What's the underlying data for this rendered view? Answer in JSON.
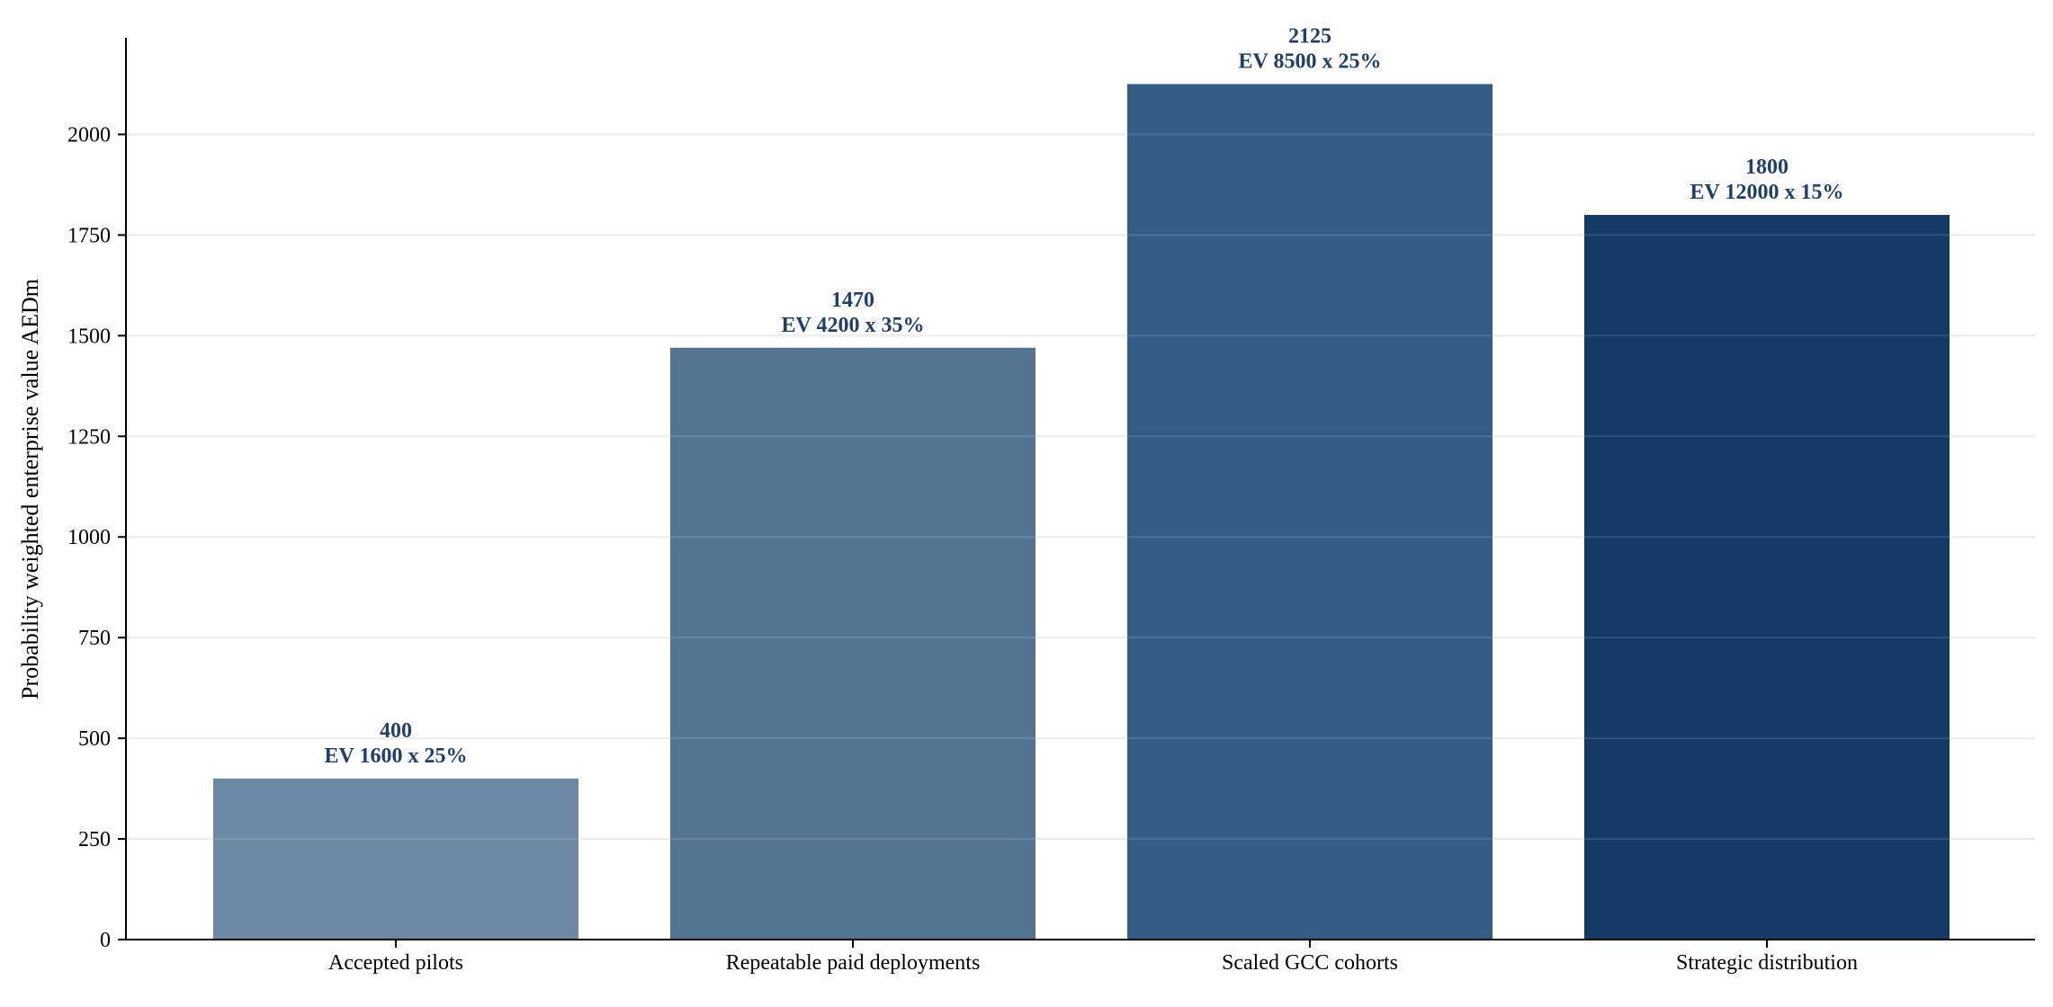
{
  "chart_data": {
    "type": "bar",
    "title": "",
    "xlabel": "",
    "ylabel": "Probability weighted enterprise value AEDm",
    "categories": [
      "Accepted pilots",
      "Repeatable paid deployments",
      "Scaled GCC cohorts",
      "Strategic distribution"
    ],
    "values": [
      400,
      1470,
      2125,
      1800
    ],
    "annotations": [
      "EV 1600 x 25%",
      "EV 4200 x 35%",
      "EV 8500 x 25%",
      "EV 12000 x 15%"
    ],
    "ylim": [
      0,
      2240
    ],
    "yticks": [
      0,
      250,
      500,
      750,
      1000,
      1250,
      1500,
      1750,
      2000
    ],
    "grid": "horizontal",
    "legend": "none",
    "bar_colors": [
      "#6b88a4",
      "#537592",
      "#335d84",
      "#143a68"
    ],
    "label_color": "#1f3f6e",
    "grid_color": "#ebebeb",
    "axis_color": "#000000"
  }
}
